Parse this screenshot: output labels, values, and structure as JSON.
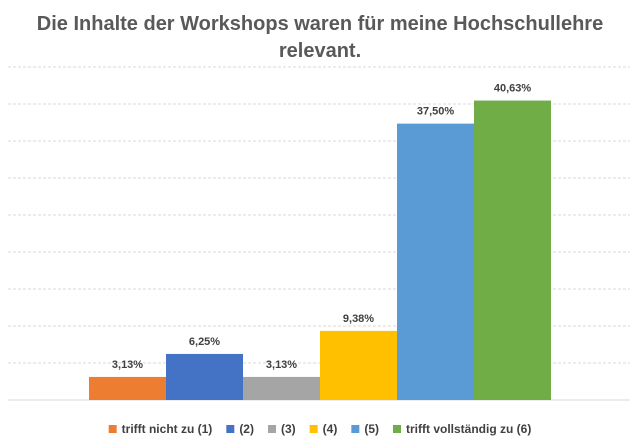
{
  "chart_data": {
    "type": "bar",
    "title_lines": [
      "Die Inhalte der Workshops waren für meine Hochschullehre",
      "relevant."
    ],
    "categories": [
      "trifft nicht zu (1)",
      "(2)",
      "(3)",
      "(4)",
      "(5)",
      "trifft vollständig zu (6)"
    ],
    "values": [
      3.13,
      6.25,
      3.13,
      9.38,
      37.5,
      40.63
    ],
    "value_labels": [
      "3,13%",
      "6,25%",
      "3,13%",
      "9,38%",
      "37,50%",
      "40,63%"
    ],
    "colors": [
      "#ED7D31",
      "#4472C4",
      "#A5A5A5",
      "#FFC000",
      "#5B9BD5",
      "#70AD47"
    ],
    "ylim": [
      0,
      45
    ],
    "grid": true,
    "legend": "bottom"
  }
}
